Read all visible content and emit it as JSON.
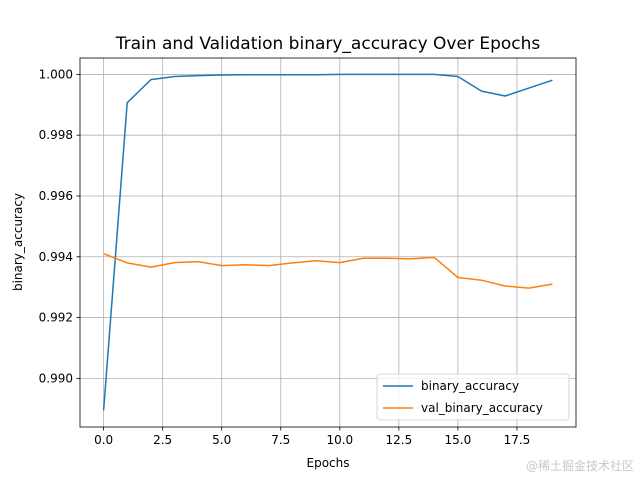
{
  "chart_data": {
    "type": "line",
    "title": "Train and Validation binary_accuracy Over Epochs",
    "xlabel": "Epochs",
    "ylabel": "binary_accuracy",
    "xlim": [
      -1.0,
      20.0
    ],
    "ylim": [
      0.9884,
      1.00054
    ],
    "grid": true,
    "legend_position": "lower-right",
    "x_ticks": [
      0.0,
      2.5,
      5.0,
      7.5,
      10.0,
      12.5,
      15.0,
      17.5
    ],
    "x_tick_labels": [
      "0.0",
      "2.5",
      "5.0",
      "7.5",
      "10.0",
      "12.5",
      "15.0",
      "17.5"
    ],
    "y_ticks": [
      0.99,
      0.992,
      0.994,
      0.996,
      0.998,
      1.0
    ],
    "y_tick_labels": [
      "0.990",
      "0.992",
      "0.994",
      "0.996",
      "0.998",
      "1.000"
    ],
    "x": [
      0,
      1,
      2,
      3,
      4,
      5,
      6,
      7,
      8,
      9,
      10,
      11,
      12,
      13,
      14,
      15,
      16,
      17,
      18,
      19
    ],
    "series": [
      {
        "name": "binary_accuracy",
        "color": "#1f77b4",
        "values": [
          0.98895,
          0.99907,
          0.99983,
          0.99993,
          0.99996,
          0.99998,
          0.99999,
          0.99999,
          0.99999,
          0.99999,
          1.0,
          1.0,
          1.0,
          1.0,
          1.0,
          0.99993,
          0.99945,
          0.99929,
          0.99955,
          0.99981
        ]
      },
      {
        "name": "val_binary_accuracy",
        "color": "#ff7f0e",
        "values": [
          0.9941,
          0.9938,
          0.99366,
          0.99381,
          0.99384,
          0.99371,
          0.99374,
          0.99371,
          0.9938,
          0.99387,
          0.99381,
          0.99395,
          0.99395,
          0.99393,
          0.99398,
          0.99332,
          0.99323,
          0.99304,
          0.99297,
          0.9931
        ]
      }
    ]
  },
  "watermark": "@稀土掘金技术社区"
}
